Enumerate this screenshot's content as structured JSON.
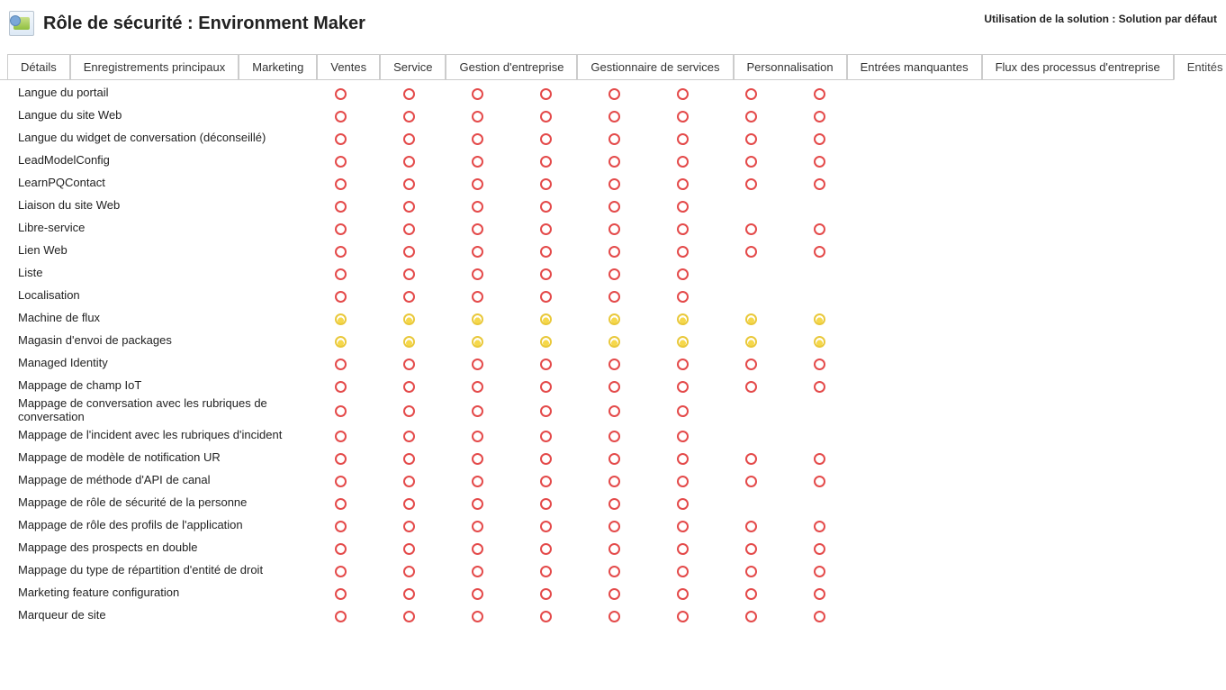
{
  "header": {
    "title": "Rôle de sécurité : Environment Maker",
    "solution_usage": "Utilisation de la solution : Solution par défaut"
  },
  "tabs": [
    {
      "label": "Détails",
      "active": false
    },
    {
      "label": "Enregistrements principaux",
      "active": false
    },
    {
      "label": "Marketing",
      "active": false
    },
    {
      "label": "Ventes",
      "active": false
    },
    {
      "label": "Service",
      "active": false
    },
    {
      "label": "Gestion d'entreprise",
      "active": false
    },
    {
      "label": "Gestionnaire de services",
      "active": false
    },
    {
      "label": "Personnalisation",
      "active": false
    },
    {
      "label": "Entrées manquantes",
      "active": false
    },
    {
      "label": "Flux des processus d'entreprise",
      "active": false
    },
    {
      "label": "Entités personnalisées",
      "active": true
    }
  ],
  "colors": {
    "circle_red": "#e44a4a",
    "circle_yellow": "#e9c83a",
    "border_gray": "#cccccc",
    "text": "#222222",
    "background": "#ffffff"
  },
  "privilege_columns": 8,
  "entities": [
    {
      "name": "Langue du portail",
      "p": [
        "red",
        "red",
        "red",
        "red",
        "red",
        "red",
        "red",
        "red"
      ]
    },
    {
      "name": "Langue du site Web",
      "p": [
        "red",
        "red",
        "red",
        "red",
        "red",
        "red",
        "red",
        "red"
      ]
    },
    {
      "name": "Langue du widget de conversation (déconseillé)",
      "p": [
        "red",
        "red",
        "red",
        "red",
        "red",
        "red",
        "red",
        "red"
      ]
    },
    {
      "name": "LeadModelConfig",
      "p": [
        "red",
        "red",
        "red",
        "red",
        "red",
        "red",
        "red",
        "red"
      ]
    },
    {
      "name": "LearnPQContact",
      "p": [
        "red",
        "red",
        "red",
        "red",
        "red",
        "red",
        "red",
        "red"
      ]
    },
    {
      "name": "Liaison du site Web",
      "p": [
        "red",
        "red",
        "red",
        "red",
        "red",
        "red",
        "none",
        "none"
      ]
    },
    {
      "name": "Libre-service",
      "p": [
        "red",
        "red",
        "red",
        "red",
        "red",
        "red",
        "red",
        "red"
      ]
    },
    {
      "name": "Lien Web",
      "p": [
        "red",
        "red",
        "red",
        "red",
        "red",
        "red",
        "red",
        "red"
      ]
    },
    {
      "name": "Liste",
      "p": [
        "red",
        "red",
        "red",
        "red",
        "red",
        "red",
        "none",
        "none"
      ]
    },
    {
      "name": "Localisation",
      "p": [
        "red",
        "red",
        "red",
        "red",
        "red",
        "red",
        "none",
        "none"
      ]
    },
    {
      "name": "Machine de flux",
      "p": [
        "yellow",
        "yellow",
        "yellow",
        "yellow",
        "yellow",
        "yellow",
        "yellow",
        "yellow"
      ]
    },
    {
      "name": "Magasin d'envoi de packages",
      "p": [
        "yellow",
        "yellow",
        "yellow",
        "yellow",
        "yellow",
        "yellow",
        "yellow",
        "yellow"
      ]
    },
    {
      "name": "Managed Identity",
      "p": [
        "red",
        "red",
        "red",
        "red",
        "red",
        "red",
        "red",
        "red"
      ]
    },
    {
      "name": "Mappage de champ IoT",
      "p": [
        "red",
        "red",
        "red",
        "red",
        "red",
        "red",
        "red",
        "red"
      ]
    },
    {
      "name": "Mappage de conversation avec les rubriques de conversation",
      "p": [
        "red",
        "red",
        "red",
        "red",
        "red",
        "red",
        "none",
        "none"
      ]
    },
    {
      "name": "Mappage de l'incident avec les rubriques d'incident",
      "p": [
        "red",
        "red",
        "red",
        "red",
        "red",
        "red",
        "none",
        "none"
      ]
    },
    {
      "name": "Mappage de modèle de notification UR",
      "p": [
        "red",
        "red",
        "red",
        "red",
        "red",
        "red",
        "red",
        "red"
      ]
    },
    {
      "name": "Mappage de méthode d'API de canal",
      "p": [
        "red",
        "red",
        "red",
        "red",
        "red",
        "red",
        "red",
        "red"
      ]
    },
    {
      "name": "Mappage de rôle de sécurité de la personne",
      "p": [
        "red",
        "red",
        "red",
        "red",
        "red",
        "red",
        "none",
        "none"
      ]
    },
    {
      "name": "Mappage de rôle des profils de l'application",
      "p": [
        "red",
        "red",
        "red",
        "red",
        "red",
        "red",
        "red",
        "red"
      ]
    },
    {
      "name": "Mappage des prospects en double",
      "p": [
        "red",
        "red",
        "red",
        "red",
        "red",
        "red",
        "red",
        "red"
      ]
    },
    {
      "name": "Mappage du type de répartition d'entité de droit",
      "p": [
        "red",
        "red",
        "red",
        "red",
        "red",
        "red",
        "red",
        "red"
      ]
    },
    {
      "name": "Marketing feature configuration",
      "p": [
        "red",
        "red",
        "red",
        "red",
        "red",
        "red",
        "red",
        "red"
      ]
    },
    {
      "name": "Marqueur de site",
      "p": [
        "red",
        "red",
        "red",
        "red",
        "red",
        "red",
        "red",
        "red"
      ]
    }
  ]
}
